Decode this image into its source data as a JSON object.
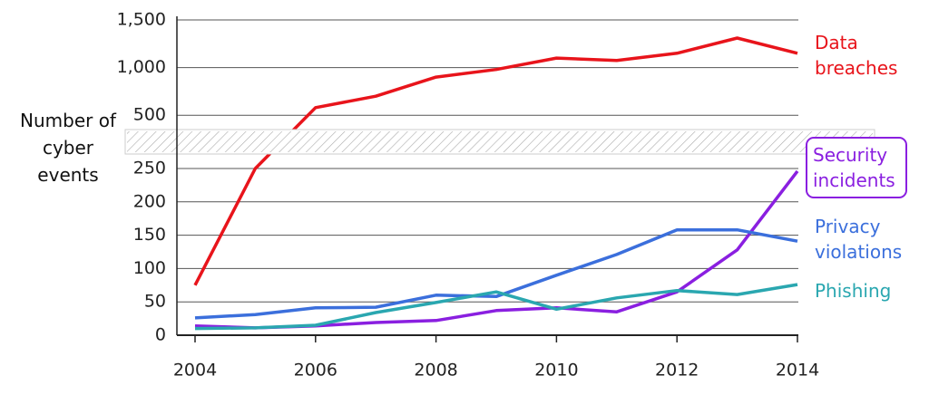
{
  "chart_data": {
    "type": "line",
    "y_label": "Number of cyber events",
    "x": [
      2004,
      2005,
      2006,
      2007,
      2008,
      2009,
      2010,
      2011,
      2012,
      2013,
      2014
    ],
    "xlim": [
      2004,
      2014
    ],
    "xticks": [
      2004,
      2006,
      2008,
      2010,
      2012,
      2014
    ],
    "y_segments": [
      {
        "ylim": [
          0,
          250
        ],
        "yticks": [
          0,
          50,
          100,
          150,
          200,
          250
        ]
      },
      {
        "ylim": [
          350,
          1500
        ],
        "yticks": [
          500,
          {
            "value": 1000,
            "label": "1,000"
          },
          {
            "value": 1500,
            "label": "1,500"
          }
        ]
      }
    ],
    "grid": true,
    "series": [
      {
        "name": "Data breaches",
        "color": "#e8141b",
        "values": [
          75,
          250,
          580,
          700,
          900,
          980,
          1100,
          1075,
          1150,
          1310,
          1150
        ]
      },
      {
        "name": "Security incidents",
        "color": "#8a1fe0",
        "values": [
          14,
          11,
          14,
          19,
          22,
          37,
          41,
          35,
          65,
          128,
          246
        ]
      },
      {
        "name": "Privacy violations",
        "color": "#3b6fdc",
        "values": [
          26,
          31,
          41,
          42,
          60,
          58,
          90,
          121,
          158,
          158,
          141
        ]
      },
      {
        "name": "Phishing",
        "color": "#2aa7b0",
        "values": [
          10,
          11,
          15,
          34,
          49,
          65,
          39,
          56,
          67,
          61,
          76
        ]
      }
    ]
  }
}
